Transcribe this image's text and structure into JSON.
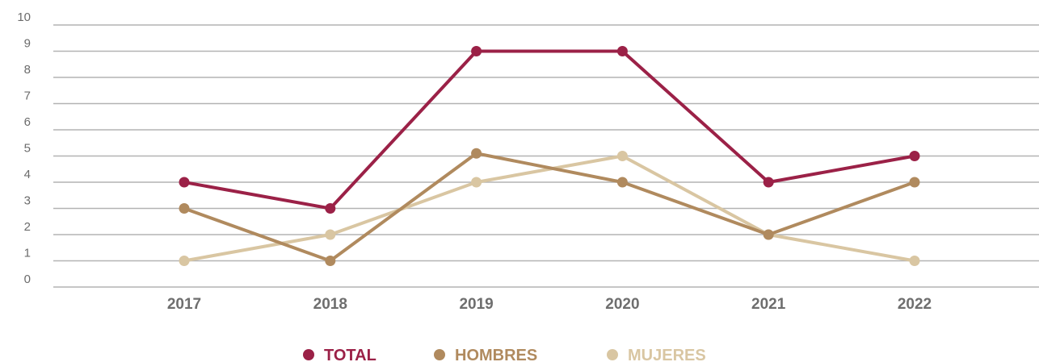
{
  "chart_data": {
    "type": "line",
    "categories": [
      "2017",
      "2018",
      "2019",
      "2020",
      "2021",
      "2022"
    ],
    "ylim": [
      0,
      10
    ],
    "yticks": [
      "0",
      "1",
      "2",
      "3",
      "4",
      "5",
      "6",
      "7",
      "8",
      "9",
      "10"
    ],
    "grid": true,
    "legend_placement": "bottom-center",
    "series": [
      {
        "name": "TOTAL",
        "color": "#9b2147",
        "values": [
          4,
          3,
          9,
          9,
          4,
          5
        ]
      },
      {
        "name": "HOMBRES",
        "color": "#b08a5e",
        "values": [
          3,
          1,
          5.1,
          4,
          2,
          4
        ]
      },
      {
        "name": "MUJERES",
        "color": "#d9c6a2",
        "values": [
          1,
          2,
          4,
          5,
          2,
          1
        ]
      }
    ]
  }
}
